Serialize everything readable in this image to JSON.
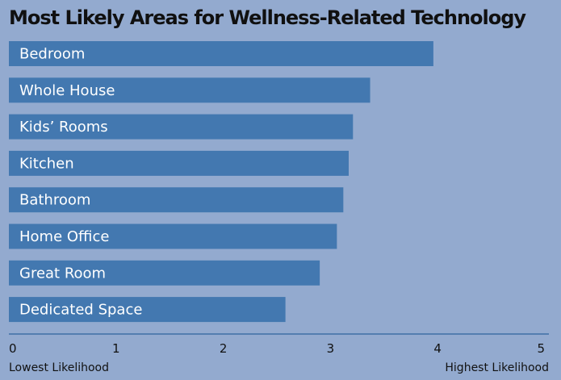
{
  "chart_data": {
    "type": "bar",
    "orientation": "horizontal",
    "title": "Most Likely Areas for Wellness-Related Technology",
    "categories": [
      "Bedroom",
      "Whole House",
      "Kids’ Rooms",
      "Kitchen",
      "Bathroom",
      "Home Office",
      "Great Room",
      "Dedicated Space"
    ],
    "values": [
      3.96,
      3.37,
      3.21,
      3.17,
      3.12,
      3.06,
      2.9,
      2.58
    ],
    "xlim": [
      0,
      5
    ],
    "ticks": [
      "0",
      "1",
      "2",
      "3",
      "4",
      "5"
    ],
    "xlabel_min": "Lowest Likelihood",
    "xlabel_max": "Highest Likelihood",
    "grid": false
  },
  "colors": {
    "background": "#93aacf",
    "bar": "#4378b0",
    "axis": "#3f6fa6"
  }
}
